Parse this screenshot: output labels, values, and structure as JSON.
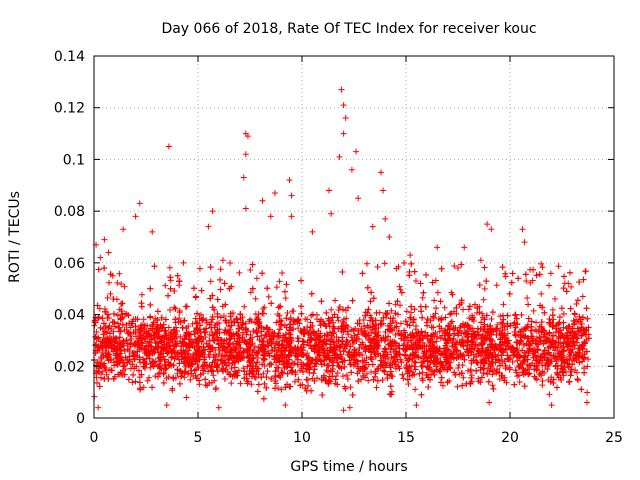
{
  "chart_data": {
    "type": "scatter",
    "title": "Day 066 of 2018, Rate Of TEC Index for receiver kouc",
    "xlabel": "GPS time / hours",
    "ylabel": "ROTI / TECUs",
    "xlim": [
      0,
      25
    ],
    "ylim": [
      0,
      0.14
    ],
    "x_ticks": [
      "0",
      "5",
      "10",
      "15",
      "20",
      "25"
    ],
    "y_ticks": [
      "0",
      "0.02",
      "0.04",
      "0.06",
      "0.08",
      "0.1",
      "0.12",
      "0.14"
    ],
    "grid": true,
    "marker": "+",
    "color": "#ff0000",
    "x_range_observed": [
      0,
      23.8
    ],
    "series": [
      {
        "values": [
          {
            "x": 0.1,
            "y": 0.067
          },
          {
            "x": 0.3,
            "y": 0.062
          },
          {
            "x": 0.5,
            "y": 0.069
          },
          {
            "x": 0.7,
            "y": 0.064
          },
          {
            "x": 0.9,
            "y": 0.055
          },
          {
            "x": 1.4,
            "y": 0.073
          },
          {
            "x": 2.0,
            "y": 0.078
          },
          {
            "x": 2.2,
            "y": 0.083
          },
          {
            "x": 2.8,
            "y": 0.072
          },
          {
            "x": 3.6,
            "y": 0.105
          },
          {
            "x": 4.3,
            "y": 0.06
          },
          {
            "x": 5.5,
            "y": 0.074
          },
          {
            "x": 5.7,
            "y": 0.08
          },
          {
            "x": 6.2,
            "y": 0.061
          },
          {
            "x": 7.3,
            "y": 0.11
          },
          {
            "x": 7.4,
            "y": 0.109
          },
          {
            "x": 7.3,
            "y": 0.102
          },
          {
            "x": 7.2,
            "y": 0.093
          },
          {
            "x": 7.3,
            "y": 0.081
          },
          {
            "x": 8.1,
            "y": 0.084
          },
          {
            "x": 8.5,
            "y": 0.078
          },
          {
            "x": 8.7,
            "y": 0.087
          },
          {
            "x": 9.4,
            "y": 0.092
          },
          {
            "x": 9.5,
            "y": 0.086
          },
          {
            "x": 9.5,
            "y": 0.078
          },
          {
            "x": 10.5,
            "y": 0.072
          },
          {
            "x": 11.3,
            "y": 0.088
          },
          {
            "x": 11.4,
            "y": 0.079
          },
          {
            "x": 11.9,
            "y": 0.127
          },
          {
            "x": 12.0,
            "y": 0.121
          },
          {
            "x": 12.1,
            "y": 0.116
          },
          {
            "x": 12.0,
            "y": 0.11
          },
          {
            "x": 11.8,
            "y": 0.101
          },
          {
            "x": 12.4,
            "y": 0.096
          },
          {
            "x": 12.6,
            "y": 0.103
          },
          {
            "x": 12.7,
            "y": 0.085
          },
          {
            "x": 13.4,
            "y": 0.074
          },
          {
            "x": 13.8,
            "y": 0.095
          },
          {
            "x": 13.9,
            "y": 0.088
          },
          {
            "x": 14.0,
            "y": 0.077
          },
          {
            "x": 14.2,
            "y": 0.07
          },
          {
            "x": 15.2,
            "y": 0.063
          },
          {
            "x": 16.5,
            "y": 0.066
          },
          {
            "x": 17.5,
            "y": 0.058
          },
          {
            "x": 17.8,
            "y": 0.066
          },
          {
            "x": 18.6,
            "y": 0.061
          },
          {
            "x": 18.9,
            "y": 0.075
          },
          {
            "x": 19.1,
            "y": 0.073
          },
          {
            "x": 20.6,
            "y": 0.073
          },
          {
            "x": 20.7,
            "y": 0.068
          },
          {
            "x": 21.5,
            "y": 0.048
          },
          {
            "x": 22.8,
            "y": 0.052
          },
          {
            "x": 23.5,
            "y": 0.047
          },
          {
            "x": 0.2,
            "y": 0.004
          },
          {
            "x": 3.5,
            "y": 0.005
          },
          {
            "x": 6.0,
            "y": 0.004
          },
          {
            "x": 9.2,
            "y": 0.005
          },
          {
            "x": 12.0,
            "y": 0.003
          },
          {
            "x": 12.3,
            "y": 0.004
          },
          {
            "x": 15.5,
            "y": 0.005
          },
          {
            "x": 19.0,
            "y": 0.006
          },
          {
            "x": 22.0,
            "y": 0.005
          },
          {
            "x": 23.7,
            "y": 0.006
          }
        ]
      }
    ]
  }
}
